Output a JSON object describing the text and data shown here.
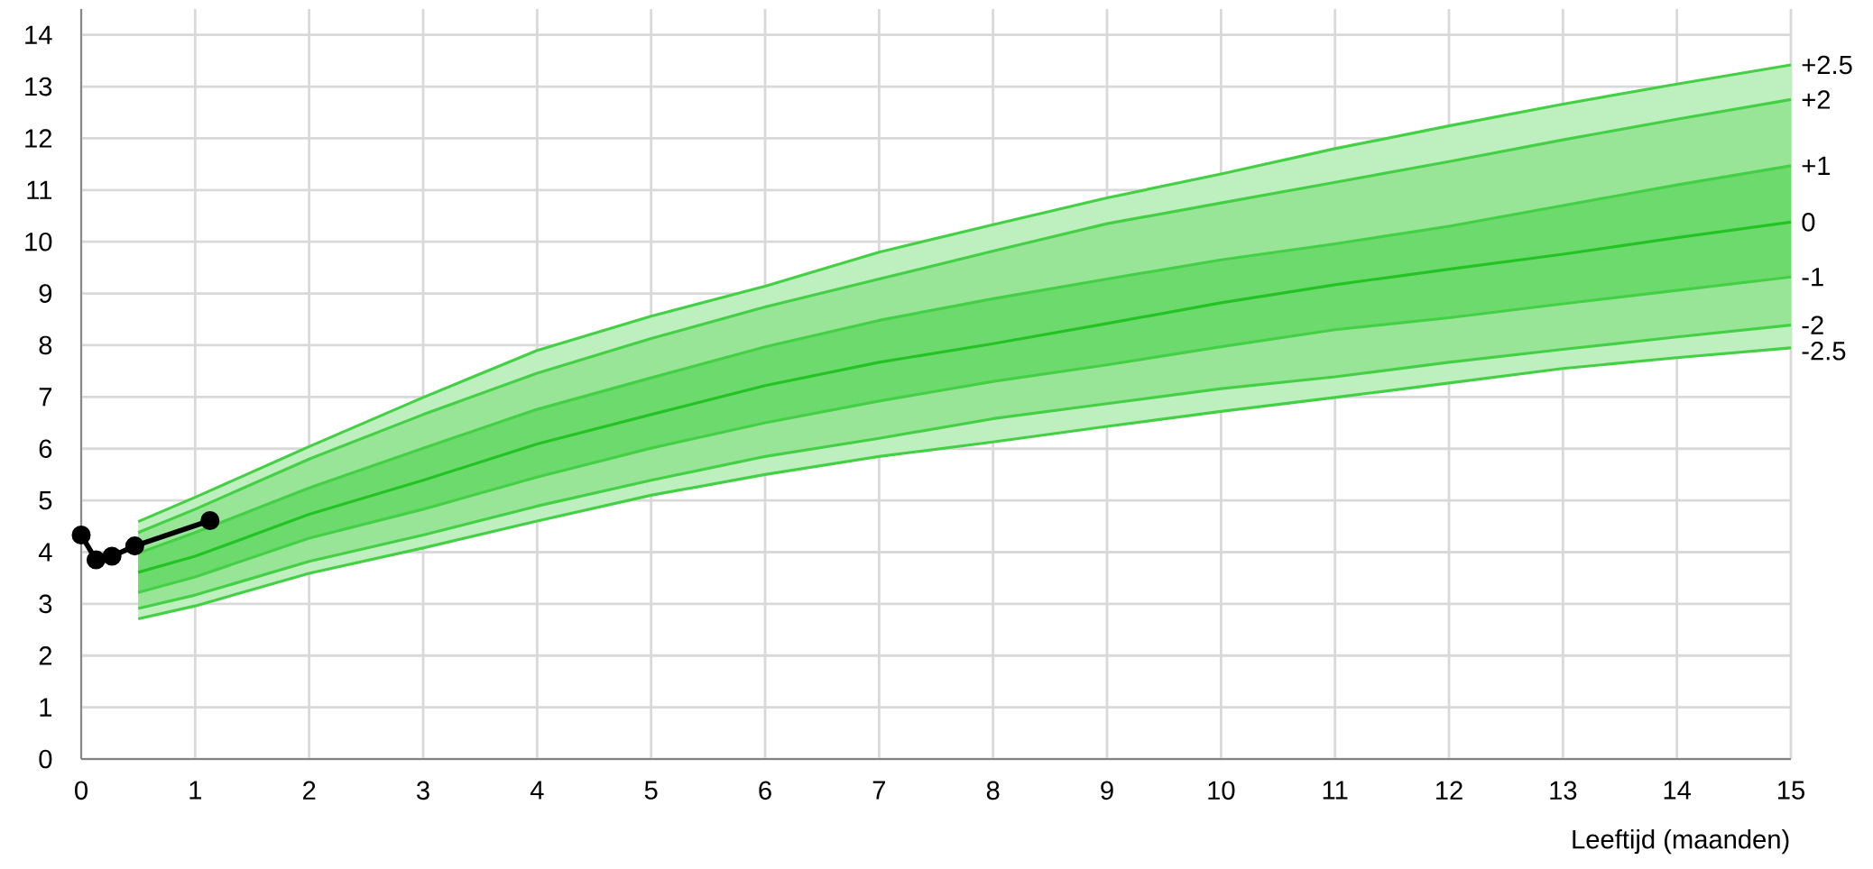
{
  "chart_data": {
    "type": "line",
    "xlabel": "Leeftijd (maanden)",
    "xlim": [
      0,
      15
    ],
    "ylim": [
      0,
      14.5
    ],
    "xticks": [
      0,
      1,
      2,
      3,
      4,
      5,
      6,
      7,
      8,
      9,
      10,
      11,
      12,
      13,
      14,
      15
    ],
    "yticks": [
      0,
      1,
      2,
      3,
      4,
      5,
      6,
      7,
      8,
      9,
      10,
      11,
      12,
      13,
      14
    ],
    "grid": true,
    "x": [
      0.5,
      1,
      2,
      3,
      4,
      5,
      6,
      7,
      8,
      9,
      10,
      11,
      12,
      13,
      14,
      15
    ],
    "series": [
      {
        "name": "+2.5",
        "color": "#44d044",
        "values": [
          4.59,
          5.06,
          6.04,
          6.99,
          7.9,
          8.56,
          9.14,
          9.8,
          10.33,
          10.85,
          11.31,
          11.8,
          12.24,
          12.66,
          13.05,
          13.42
        ],
        "lower": [
          2.71,
          2.96,
          3.59,
          4.08,
          4.6,
          5.1,
          5.5,
          5.85,
          6.13,
          6.43,
          6.72,
          6.99,
          7.27,
          7.55,
          7.76,
          7.95
        ],
        "upper": [
          4.59,
          5.06,
          6.04,
          6.99,
          7.9,
          8.56,
          9.14,
          9.8,
          10.33,
          10.85,
          11.31,
          11.8,
          12.24,
          12.66,
          13.05,
          13.42
        ]
      },
      {
        "name": "+2",
        "color": "#44d044",
        "values": [
          4.38,
          4.83,
          5.8,
          6.66,
          7.46,
          8.13,
          8.74,
          9.28,
          9.82,
          10.35,
          10.75,
          11.15,
          11.55,
          11.97,
          12.37,
          12.75
        ],
        "lower": [
          2.91,
          3.17,
          3.82,
          4.33,
          4.89,
          5.39,
          5.85,
          6.2,
          6.58,
          6.87,
          7.16,
          7.39,
          7.67,
          7.92,
          8.16,
          8.39
        ],
        "upper": [
          4.38,
          4.83,
          5.8,
          6.66,
          7.46,
          8.13,
          8.74,
          9.28,
          9.82,
          10.35,
          10.75,
          11.15,
          11.55,
          11.97,
          12.37,
          12.75
        ]
      },
      {
        "name": "+1",
        "color": "#44d044",
        "values": [
          3.98,
          4.38,
          5.24,
          6.01,
          6.76,
          7.37,
          7.97,
          8.48,
          8.9,
          9.28,
          9.65,
          9.96,
          10.3,
          10.7,
          11.1,
          11.47
        ],
        "lower": [
          3.22,
          3.52,
          4.27,
          4.83,
          5.45,
          6.01,
          6.5,
          6.92,
          7.3,
          7.62,
          7.97,
          8.3,
          8.53,
          8.8,
          9.06,
          9.32
        ],
        "upper": [
          3.98,
          4.38,
          5.24,
          6.01,
          6.76,
          7.37,
          7.97,
          8.48,
          8.9,
          9.28,
          9.65,
          9.96,
          10.3,
          10.7,
          11.1,
          11.47
        ]
      },
      {
        "name": "0",
        "color": "#22c322",
        "values": [
          3.61,
          3.92,
          4.73,
          5.39,
          6.09,
          6.66,
          7.22,
          7.67,
          8.03,
          8.42,
          8.82,
          9.17,
          9.47,
          9.76,
          10.08,
          10.38
        ]
      },
      {
        "name": "-1",
        "color": "#44d044",
        "values": [
          3.22,
          3.52,
          4.27,
          4.83,
          5.45,
          6.01,
          6.5,
          6.92,
          7.3,
          7.62,
          7.97,
          8.3,
          8.53,
          8.8,
          9.06,
          9.32
        ]
      },
      {
        "name": "-2",
        "color": "#44d044",
        "values": [
          2.91,
          3.17,
          3.82,
          4.33,
          4.89,
          5.39,
          5.85,
          6.2,
          6.58,
          6.87,
          7.16,
          7.39,
          7.67,
          7.92,
          8.16,
          8.39
        ]
      },
      {
        "name": "-2.5",
        "color": "#44d044",
        "values": [
          2.71,
          2.96,
          3.59,
          4.08,
          4.6,
          5.1,
          5.5,
          5.85,
          6.13,
          6.43,
          6.72,
          6.99,
          7.27,
          7.55,
          7.76,
          7.95
        ]
      },
      {
        "color": "#000000",
        "marker": "circle",
        "x": [
          0,
          0.13,
          0.27,
          0.47,
          1.13
        ],
        "values": [
          4.33,
          3.85,
          3.92,
          4.12,
          4.61
        ]
      }
    ]
  }
}
